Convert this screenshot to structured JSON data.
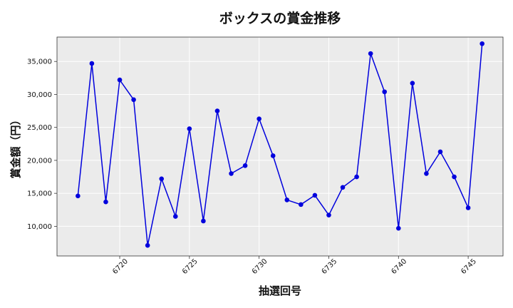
{
  "chart_data": {
    "type": "line",
    "title": "ボックスの賞金推移",
    "xlabel": "抽選回号",
    "ylabel": "賞金額（円）",
    "xlim": [
      6715.5,
      6747.5
    ],
    "ylim": [
      5500,
      38700
    ],
    "x_ticks": [
      6720,
      6725,
      6730,
      6735,
      6740,
      6745
    ],
    "y_ticks": [
      10000,
      15000,
      20000,
      25000,
      30000,
      35000
    ],
    "y_tick_labels": [
      "10,000",
      "15,000",
      "20,000",
      "25,000",
      "30,000",
      "35,000"
    ],
    "grid": true,
    "series": [
      {
        "color": "#0000dd",
        "x": [
          6717,
          6718,
          6719,
          6720,
          6721,
          6722,
          6723,
          6724,
          6725,
          6726,
          6727,
          6728,
          6729,
          6730,
          6731,
          6732,
          6733,
          6734,
          6735,
          6736,
          6737,
          6738,
          6739,
          6740,
          6741,
          6742,
          6743,
          6744,
          6745,
          6746
        ],
        "values": [
          14600,
          34700,
          13700,
          32200,
          29200,
          7100,
          17200,
          11500,
          24800,
          10800,
          27500,
          18000,
          19200,
          26300,
          20700,
          14000,
          13300,
          14700,
          11700,
          15900,
          17500,
          36200,
          30400,
          9700,
          31700,
          18000,
          21300,
          17500,
          12800,
          37700
        ]
      }
    ]
  }
}
